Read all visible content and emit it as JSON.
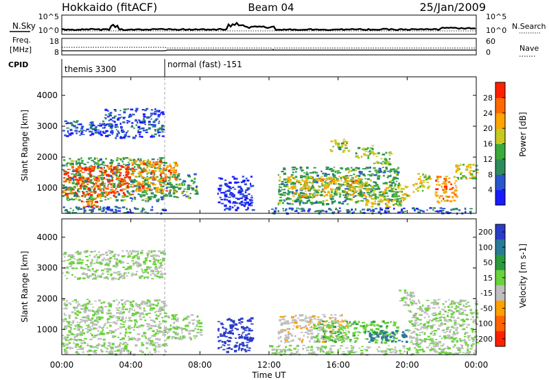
{
  "header": {
    "station": "Hokkaido (fitACF)",
    "beam": "Beam 04",
    "date": "25/Jan/2009"
  },
  "strip_labels": {
    "nsky": "N.Sky",
    "freq_line1": "Freq.",
    "freq_line2": "[MHz]",
    "cpid": "CPID",
    "nsearch": "N.Search",
    "nave": "Nave"
  },
  "strip_ticks": {
    "noise_left": [
      "10^5",
      "10^0"
    ],
    "noise_right": [
      "10^5",
      "10^0"
    ],
    "freq_left": [
      "18",
      "8"
    ],
    "nave_right": [
      "60",
      "0"
    ]
  },
  "cpid_segments": [
    {
      "label": "themis 3300",
      "start_hour": 0,
      "end_hour": 6
    },
    {
      "label": "normal (fast) -151",
      "start_hour": 6,
      "end_hour": 24
    }
  ],
  "colors": {
    "power_scale": [
      "#1a1aff",
      "#2a55cc",
      "#2c8c5a",
      "#3aaa3a",
      "#c8c820",
      "#ffa500",
      "#ff6a00",
      "#ff2000"
    ],
    "velocity_scale": [
      "#2a3cc8",
      "#2a7a96",
      "#2a9a3c",
      "#6ad23c",
      "#bebebe",
      "#ffa000",
      "#ff6400",
      "#ff2000"
    ]
  },
  "chart_data": [
    {
      "type": "heatmap",
      "panel": "power",
      "ylabel": "Slant Range [km]",
      "ylim": [
        180,
        4600
      ],
      "yticks": [
        "1000",
        "2000",
        "3000",
        "4000"
      ],
      "colorbar": {
        "label": "Power [dB]",
        "ticks": [
          "4",
          "8",
          "12",
          "16",
          "20",
          "24",
          "28"
        ],
        "range": [
          0,
          32
        ]
      },
      "regions": [
        {
          "t0": 0.0,
          "t1": 2.4,
          "r0": 2700,
          "r1": 3200,
          "value": 5
        },
        {
          "t0": 2.4,
          "t1": 5.9,
          "r0": 2650,
          "r1": 3600,
          "value": 5
        },
        {
          "t0": 0.0,
          "t1": 6.0,
          "r0": 600,
          "r1": 2000,
          "value": 12
        },
        {
          "t0": 0.0,
          "t1": 4.0,
          "r0": 750,
          "r1": 1750,
          "value": 28
        },
        {
          "t0": 4.0,
          "t1": 6.6,
          "r0": 900,
          "r1": 1900,
          "value": 24
        },
        {
          "t0": 6.0,
          "t1": 7.8,
          "r0": 700,
          "r1": 1500,
          "value": 12
        },
        {
          "t0": 1.1,
          "t1": 2.0,
          "r0": 400,
          "r1": 620,
          "value": 26
        },
        {
          "t0": 0.0,
          "t1": 6.0,
          "r0": 200,
          "r1": 420,
          "value": 7
        },
        {
          "t0": 9.0,
          "t1": 11.0,
          "r0": 300,
          "r1": 1400,
          "value": 3
        },
        {
          "t0": 12.5,
          "t1": 19.5,
          "r0": 500,
          "r1": 1700,
          "value": 12
        },
        {
          "t0": 13.0,
          "t1": 17.5,
          "r0": 750,
          "r1": 1400,
          "value": 20
        },
        {
          "t0": 17.5,
          "t1": 20.0,
          "r0": 400,
          "r1": 1100,
          "value": 18
        },
        {
          "t0": 20.3,
          "t1": 21.3,
          "r0": 900,
          "r1": 1500,
          "value": 18
        },
        {
          "t0": 21.6,
          "t1": 22.8,
          "r0": 550,
          "r1": 1400,
          "value": 24
        },
        {
          "t0": 22.6,
          "t1": 24.0,
          "r0": 1300,
          "r1": 1800,
          "value": 18
        },
        {
          "t0": 15.5,
          "t1": 16.6,
          "r0": 2200,
          "r1": 2600,
          "value": 16
        },
        {
          "t0": 17.0,
          "t1": 18.0,
          "r0": 2000,
          "r1": 2400,
          "value": 16
        },
        {
          "t0": 18.0,
          "t1": 19.0,
          "r0": 1800,
          "r1": 2200,
          "value": 16
        },
        {
          "t0": 12.0,
          "t1": 24.0,
          "r0": 200,
          "r1": 380,
          "value": 6
        }
      ]
    },
    {
      "type": "heatmap",
      "panel": "velocity",
      "ylabel": "Slant Range [km]",
      "xlabel": "Time UT",
      "xlim": [
        0,
        24
      ],
      "xticks": [
        "00:00",
        "04:00",
        "08:00",
        "12:00",
        "16:00",
        "20:00",
        "00:00"
      ],
      "ylim": [
        180,
        4600
      ],
      "yticks": [
        "1000",
        "2000",
        "3000",
        "4000"
      ],
      "colorbar": {
        "label": "Velocity [m s-1]",
        "ticks": [
          "200",
          "100",
          "50",
          "15",
          "-15",
          "-50",
          "-100",
          "-200"
        ],
        "range": [
          -250,
          250
        ]
      },
      "regions": [
        {
          "t0": 0.0,
          "t1": 5.9,
          "r0": 2650,
          "r1": 3600,
          "value": 0
        },
        {
          "t0": 0.0,
          "t1": 6.0,
          "r0": 650,
          "r1": 2000,
          "value": 0
        },
        {
          "t0": 6.0,
          "t1": 8.0,
          "r0": 700,
          "r1": 1500,
          "value": 0
        },
        {
          "t0": 0.0,
          "t1": 6.0,
          "r0": 200,
          "r1": 600,
          "value": 0
        },
        {
          "t0": 9.0,
          "t1": 11.0,
          "r0": 300,
          "r1": 1400,
          "value": 220
        },
        {
          "t0": 12.5,
          "t1": 16.5,
          "r0": 600,
          "r1": 1500,
          "value": -60
        },
        {
          "t0": 14.5,
          "t1": 19.5,
          "r0": 600,
          "r1": 1300,
          "value": 60
        },
        {
          "t0": 17.5,
          "t1": 20.0,
          "r0": 600,
          "r1": 1000,
          "value": 150
        },
        {
          "t0": 12.0,
          "t1": 24.0,
          "r0": 200,
          "r1": 500,
          "value": 0
        },
        {
          "t0": 20.0,
          "t1": 24.0,
          "r0": 500,
          "r1": 2000,
          "value": 0
        },
        {
          "t0": 19.5,
          "t1": 20.4,
          "r0": 1800,
          "r1": 2300,
          "value": 0
        }
      ]
    }
  ]
}
